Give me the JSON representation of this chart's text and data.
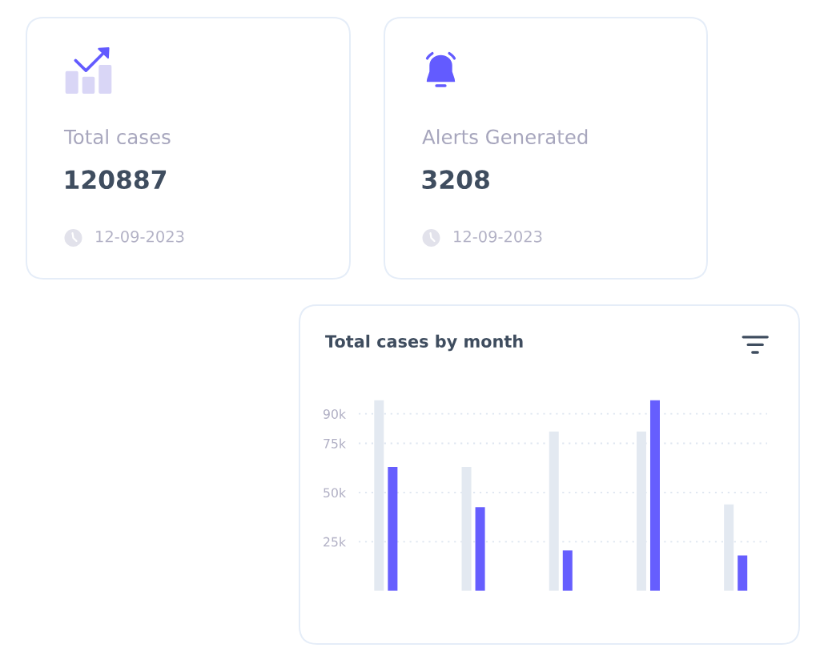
{
  "chart_data": [
    {
      "type": "other",
      "title": "Total cases",
      "annotations": [
        "120887",
        "12-09-2023"
      ]
    },
    {
      "type": "other",
      "title": "Alerts Generated",
      "annotations": [
        "3208",
        "12-09-2023"
      ]
    },
    {
      "type": "bar",
      "title": "Total cases by month",
      "categories": [
        null,
        null,
        null,
        null,
        null
      ],
      "series": [
        {
          "color": "#e3e9f1",
          "values": [
            97000,
            63000,
            81000,
            81000,
            44000
          ]
        },
        {
          "color": "#665efe",
          "values": [
            63000,
            42500,
            20500,
            97000,
            18000
          ]
        }
      ],
      "ylim": [
        0,
        97000
      ],
      "yticks": [
        {
          "value": 25000,
          "label": "25k"
        },
        {
          "value": 50000,
          "label": "50k"
        },
        {
          "value": 75000,
          "label": "75k"
        },
        {
          "value": 90000,
          "label": "90k"
        }
      ],
      "grid": "y"
    }
  ]
}
